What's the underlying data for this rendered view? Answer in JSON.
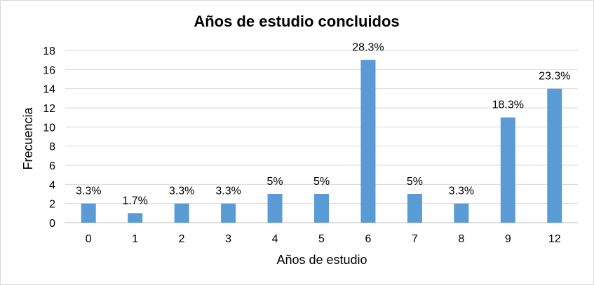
{
  "chart_data": {
    "type": "bar",
    "title": "Años de estudio concluidos",
    "xlabel": "Años de estudio",
    "ylabel": "Frecuencia",
    "categories": [
      "0",
      "1",
      "2",
      "3",
      "4",
      "5",
      "6",
      "7",
      "8",
      "9",
      "12"
    ],
    "values": [
      2,
      1,
      2,
      2,
      3,
      3,
      17,
      3,
      2,
      11,
      14
    ],
    "data_labels": [
      "3.3%",
      "1.7%",
      "3.3%",
      "3.3%",
      "5%",
      "5%",
      "28.3%",
      "5%",
      "3.3%",
      "18.3%",
      "23.3%"
    ],
    "ylim": [
      0,
      18
    ],
    "yticks": [
      0,
      2,
      4,
      6,
      8,
      10,
      12,
      14,
      16,
      18
    ],
    "grid": true,
    "bar_color": "#5b9bd5"
  }
}
